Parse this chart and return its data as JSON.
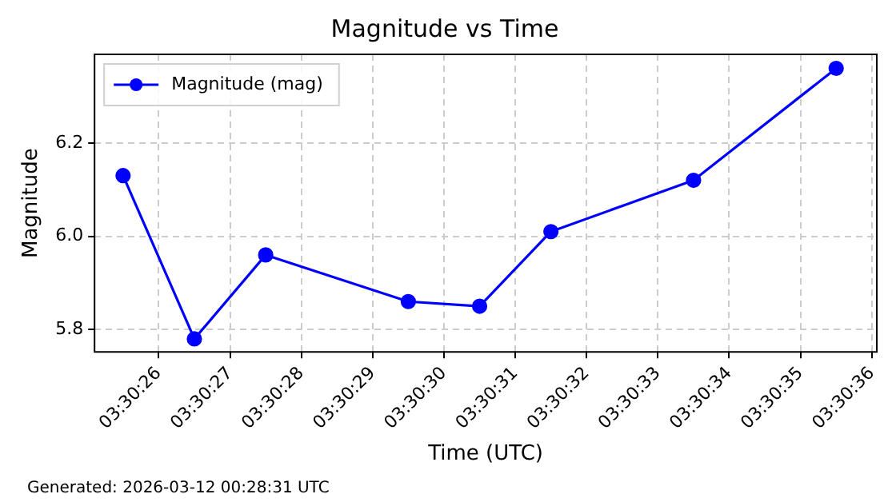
{
  "chart_data": {
    "type": "line",
    "title": "Magnitude vs Time",
    "xlabel": "Time (UTC)",
    "ylabel": "Magnitude",
    "x": [
      3.5070833,
      3.5073611,
      3.5076389,
      3.5081944,
      3.5084722,
      3.50875,
      3.5093056,
      3.5098611
    ],
    "series": [
      {
        "name": "Magnitude (mag)",
        "color": "#0000ff",
        "values": [
          6.13,
          5.78,
          5.96,
          5.86,
          5.85,
          6.01,
          6.12,
          6.36
        ]
      }
    ],
    "xlim": [
      3.5069722,
      3.5100194
    ],
    "xticks": [
      {
        "value": 3.5072222,
        "label": "03:30:26"
      },
      {
        "value": 3.5075,
        "label": "03:30:27"
      },
      {
        "value": 3.5077778,
        "label": "03:30:28"
      },
      {
        "value": 3.5080556,
        "label": "03:30:29"
      },
      {
        "value": 3.5083333,
        "label": "03:30:30"
      },
      {
        "value": 3.5086111,
        "label": "03:30:31"
      },
      {
        "value": 3.5088889,
        "label": "03:30:32"
      },
      {
        "value": 3.5091667,
        "label": "03:30:33"
      },
      {
        "value": 3.5094444,
        "label": "03:30:34"
      },
      {
        "value": 3.5097222,
        "label": "03:30:35"
      },
      {
        "value": 3.51,
        "label": "03:30:36"
      }
    ],
    "ylim": [
      5.752,
      6.39
    ],
    "yticks": [
      {
        "value": 5.8,
        "label": "5.8"
      },
      {
        "value": 6.0,
        "label": "6.0"
      },
      {
        "value": 6.2,
        "label": "6.2"
      }
    ],
    "grid": true,
    "legend": "top left",
    "marker": "circle",
    "line_style": "solid",
    "annotations": [
      "Generated: 2026-03-12 00:28:31 UTC"
    ]
  }
}
